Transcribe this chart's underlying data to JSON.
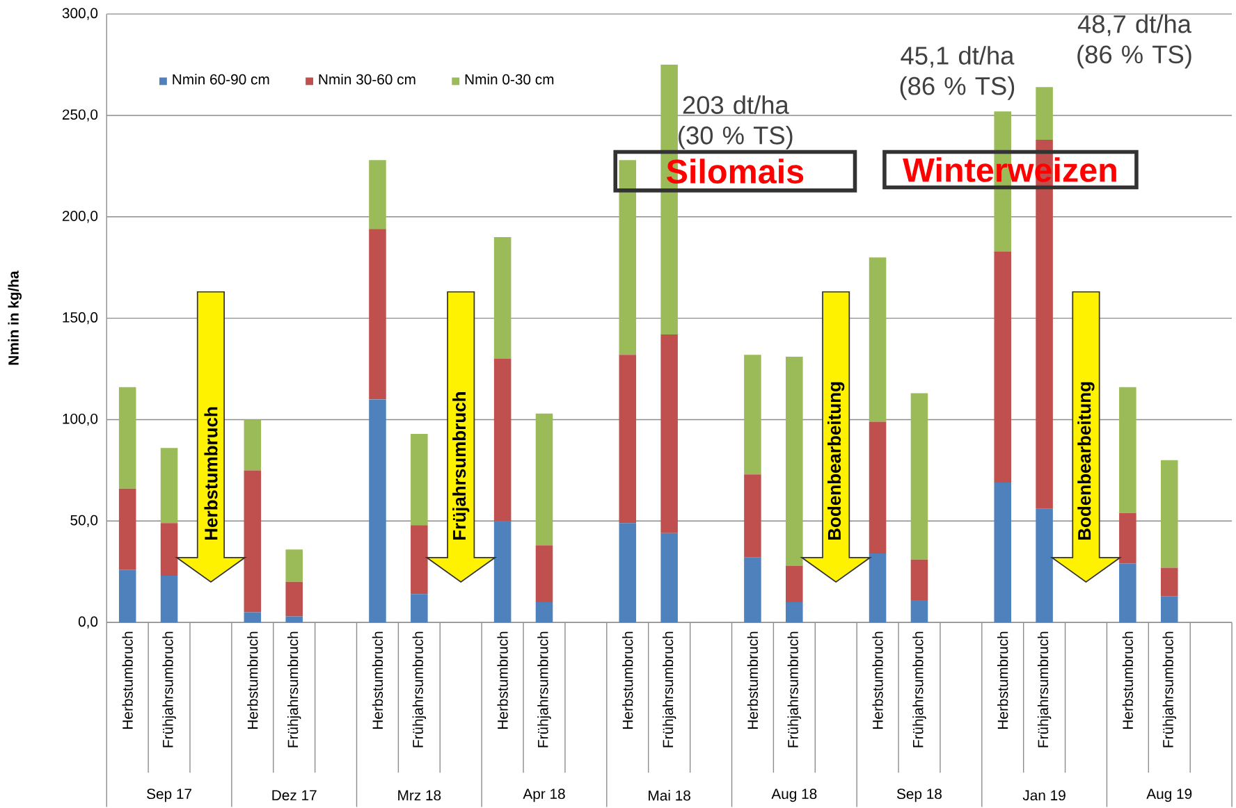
{
  "chart_data": {
    "type": "bar",
    "stacked": true,
    "ylabel": "Nmin in kg/ha",
    "categories": [
      "Herbstumbruch",
      "Frühjahrsumbruch",
      null,
      "Herbstumbruch",
      "Frühjahrsumbruch",
      null,
      "Herbstumbruch",
      "Frühjahrsumbruch",
      null,
      "Herbstumbruch",
      "Frühjahrsumbruch",
      null,
      "Herbstumbruch",
      "Frühjahrsumbruch",
      null,
      "Herbstumbruch",
      "Frühjahrsumbruch",
      null,
      "Herbstumbruch",
      "Frühjahrsumbruch",
      null,
      "Herbstumbruch",
      "Frühjahrsumbruch",
      null,
      "Herbstumbruch",
      "Frühjahrsumbruch",
      null
    ],
    "series": [
      {
        "name": "Nmin 60-90 cm",
        "color": "#4f81bd",
        "values": [
          26,
          23,
          null,
          5,
          3,
          null,
          110,
          14,
          null,
          50,
          10,
          null,
          49,
          44,
          null,
          32,
          10,
          null,
          34,
          11,
          null,
          69,
          56,
          null,
          29,
          13,
          null
        ]
      },
      {
        "name": "Nmin 30-60 cm",
        "color": "#c0504d",
        "values": [
          40,
          26,
          null,
          70,
          17,
          null,
          84,
          34,
          null,
          80,
          28,
          null,
          83,
          98,
          null,
          41,
          18,
          null,
          65,
          20,
          null,
          114,
          182,
          null,
          25,
          14,
          null
        ]
      },
      {
        "name": "Nmin 0-30 cm",
        "color": "#9bbb59",
        "values": [
          50,
          37,
          null,
          25,
          16,
          null,
          34,
          45,
          null,
          60,
          65,
          null,
          96,
          133,
          null,
          59,
          103,
          null,
          81,
          82,
          null,
          69,
          26,
          null,
          62,
          53,
          null
        ]
      }
    ],
    "ylim": [
      0,
      300
    ],
    "yticks": [
      {
        "value": 0,
        "label": "0,0"
      },
      {
        "value": 50,
        "label": "50,0"
      },
      {
        "value": 100,
        "label": "100,0"
      },
      {
        "value": 150,
        "label": "150,0"
      },
      {
        "value": 200,
        "label": "200,0"
      },
      {
        "value": 250,
        "label": "250,0"
      },
      {
        "value": 300,
        "label": "300,0"
      }
    ],
    "grid": "y",
    "legend": "top left",
    "annotations": [
      "Sep 17",
      "Dez 17",
      "Mrz 18",
      "Apr 18",
      "Mai 18",
      "Aug 18",
      "Sep 18",
      "Jan 19",
      "Aug 19",
      "Herbstumbruch",
      "Früjahrsumbruch",
      "Bodenbearbeitung",
      "Bodenbearbeitung",
      "Silomais",
      "Winterweizen",
      "203 dt/ha (30 % TS)",
      "45,1 dt/ha (86 % TS)",
      "48,7 dt/ha (86 % TS)"
    ]
  }
}
